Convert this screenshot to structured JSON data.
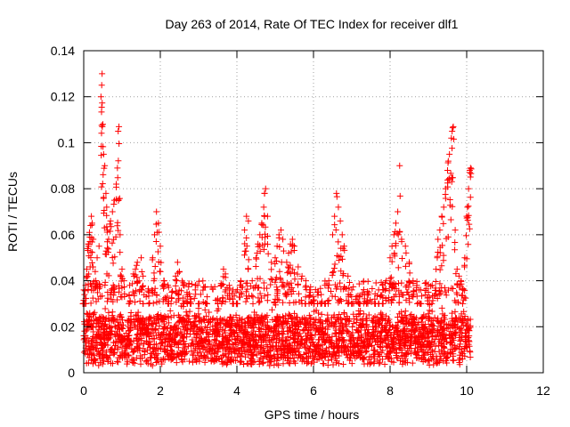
{
  "chart_data": {
    "type": "scatter",
    "title": "Day 263 of 2014, Rate Of TEC Index for receiver dlf1",
    "xlabel": "GPS time / hours",
    "ylabel": "ROTI / TECUs",
    "xlim": [
      0,
      12
    ],
    "ylim": [
      0,
      0.14
    ],
    "x_ticks": [
      0,
      2,
      4,
      6,
      8,
      10,
      12
    ],
    "y_ticks": [
      0,
      0.02,
      0.04,
      0.06,
      0.08,
      0.1,
      0.12,
      0.14
    ],
    "x_tick_labels": [
      "0",
      "2",
      "4",
      "6",
      "8",
      "10",
      "12"
    ],
    "y_tick_labels": [
      "0",
      "0.02",
      "0.04",
      "0.06",
      "0.08",
      "0.1",
      "0.12",
      "0.14"
    ],
    "grid": true,
    "grid_style": "dotted",
    "marker": "+",
    "series": [
      {
        "name": "ROTI",
        "color": "#ff0000",
        "baseline_range": [
          0.003,
          0.03
        ],
        "data_x_range": [
          0,
          10.1
        ],
        "points": [
          [
            0.0,
            0.036
          ],
          [
            0.02,
            0.034
          ],
          [
            0.05,
            0.038
          ],
          [
            0.08,
            0.045
          ],
          [
            0.1,
            0.054
          ],
          [
            0.12,
            0.056
          ],
          [
            0.15,
            0.061
          ],
          [
            0.18,
            0.064
          ],
          [
            0.2,
            0.068
          ],
          [
            0.22,
            0.065
          ],
          [
            0.25,
            0.058
          ],
          [
            0.3,
            0.044
          ],
          [
            0.35,
            0.05
          ],
          [
            0.4,
            0.055
          ],
          [
            0.45,
            0.12
          ],
          [
            0.47,
            0.125
          ],
          [
            0.48,
            0.13
          ],
          [
            0.5,
            0.108
          ],
          [
            0.52,
            0.095
          ],
          [
            0.55,
            0.09
          ],
          [
            0.58,
            0.078
          ],
          [
            0.6,
            0.072
          ],
          [
            0.62,
            0.062
          ],
          [
            0.65,
            0.058
          ],
          [
            0.7,
            0.066
          ],
          [
            0.75,
            0.07
          ],
          [
            0.8,
            0.075
          ],
          [
            0.85,
            0.082
          ],
          [
            0.88,
            0.089
          ],
          [
            0.9,
            0.105
          ],
          [
            0.92,
            0.107
          ],
          [
            0.95,
            0.06
          ],
          [
            1.0,
            0.045
          ],
          [
            1.05,
            0.04
          ],
          [
            1.2,
            0.038
          ],
          [
            1.3,
            0.043
          ],
          [
            1.35,
            0.045
          ],
          [
            1.4,
            0.048
          ],
          [
            1.5,
            0.05
          ],
          [
            1.55,
            0.042
          ],
          [
            1.7,
            0.035
          ],
          [
            1.8,
            0.05
          ],
          [
            1.85,
            0.06
          ],
          [
            1.9,
            0.07
          ],
          [
            1.95,
            0.065
          ],
          [
            2.0,
            0.055
          ],
          [
            2.1,
            0.04
          ],
          [
            2.2,
            0.038
          ],
          [
            2.3,
            0.035
          ],
          [
            2.4,
            0.042
          ],
          [
            2.45,
            0.048
          ],
          [
            2.5,
            0.044
          ],
          [
            2.6,
            0.038
          ],
          [
            2.7,
            0.034
          ],
          [
            2.8,
            0.032
          ],
          [
            3.0,
            0.028
          ],
          [
            3.2,
            0.03
          ],
          [
            3.5,
            0.032
          ],
          [
            3.6,
            0.038
          ],
          [
            3.65,
            0.045
          ],
          [
            3.7,
            0.043
          ],
          [
            3.8,
            0.038
          ],
          [
            3.9,
            0.036
          ],
          [
            4.0,
            0.03
          ],
          [
            4.1,
            0.04
          ],
          [
            4.2,
            0.062
          ],
          [
            4.25,
            0.068
          ],
          [
            4.3,
            0.066
          ],
          [
            4.4,
            0.04
          ],
          [
            4.5,
            0.05
          ],
          [
            4.55,
            0.056
          ],
          [
            4.6,
            0.06
          ],
          [
            4.65,
            0.065
          ],
          [
            4.7,
            0.072
          ],
          [
            4.72,
            0.078
          ],
          [
            4.75,
            0.08
          ],
          [
            4.8,
            0.068
          ],
          [
            4.9,
            0.048
          ],
          [
            5.0,
            0.05
          ],
          [
            5.05,
            0.055
          ],
          [
            5.1,
            0.06
          ],
          [
            5.15,
            0.062
          ],
          [
            5.2,
            0.058
          ],
          [
            5.3,
            0.048
          ],
          [
            5.35,
            0.052
          ],
          [
            5.4,
            0.056
          ],
          [
            5.45,
            0.058
          ],
          [
            5.5,
            0.055
          ],
          [
            5.6,
            0.046
          ],
          [
            5.7,
            0.042
          ],
          [
            5.8,
            0.04
          ],
          [
            5.9,
            0.036
          ],
          [
            6.0,
            0.033
          ],
          [
            6.1,
            0.035
          ],
          [
            6.2,
            0.034
          ],
          [
            6.3,
            0.038
          ],
          [
            6.4,
            0.04
          ],
          [
            6.5,
            0.06
          ],
          [
            6.55,
            0.068
          ],
          [
            6.6,
            0.078
          ],
          [
            6.65,
            0.072
          ],
          [
            6.7,
            0.066
          ],
          [
            6.75,
            0.06
          ],
          [
            6.8,
            0.055
          ],
          [
            6.9,
            0.042
          ],
          [
            7.0,
            0.036
          ],
          [
            7.2,
            0.03
          ],
          [
            7.4,
            0.034
          ],
          [
            7.6,
            0.032
          ],
          [
            7.7,
            0.036
          ],
          [
            7.8,
            0.038
          ],
          [
            7.9,
            0.04
          ],
          [
            8.0,
            0.05
          ],
          [
            8.05,
            0.055
          ],
          [
            8.1,
            0.06
          ],
          [
            8.15,
            0.065
          ],
          [
            8.2,
            0.07
          ],
          [
            8.25,
            0.09
          ],
          [
            8.3,
            0.058
          ],
          [
            8.4,
            0.055
          ],
          [
            8.5,
            0.048
          ],
          [
            8.6,
            0.04
          ],
          [
            8.7,
            0.038
          ],
          [
            8.8,
            0.036
          ],
          [
            9.0,
            0.035
          ],
          [
            9.1,
            0.038
          ],
          [
            9.2,
            0.045
          ],
          [
            9.25,
            0.058
          ],
          [
            9.3,
            0.062
          ],
          [
            9.35,
            0.068
          ],
          [
            9.4,
            0.072
          ],
          [
            9.45,
            0.08
          ],
          [
            9.5,
            0.088
          ],
          [
            9.52,
            0.092
          ],
          [
            9.55,
            0.095
          ],
          [
            9.6,
            0.102
          ],
          [
            9.62,
            0.105
          ],
          [
            9.65,
            0.107
          ],
          [
            9.7,
            0.062
          ],
          [
            9.75,
            0.045
          ],
          [
            9.8,
            0.042
          ],
          [
            9.85,
            0.04
          ],
          [
            9.9,
            0.036
          ],
          [
            9.95,
            0.05
          ],
          [
            10.0,
            0.068
          ],
          [
            10.02,
            0.072
          ],
          [
            10.05,
            0.08
          ],
          [
            10.08,
            0.088
          ],
          [
            10.1,
            0.089
          ]
        ]
      }
    ]
  }
}
